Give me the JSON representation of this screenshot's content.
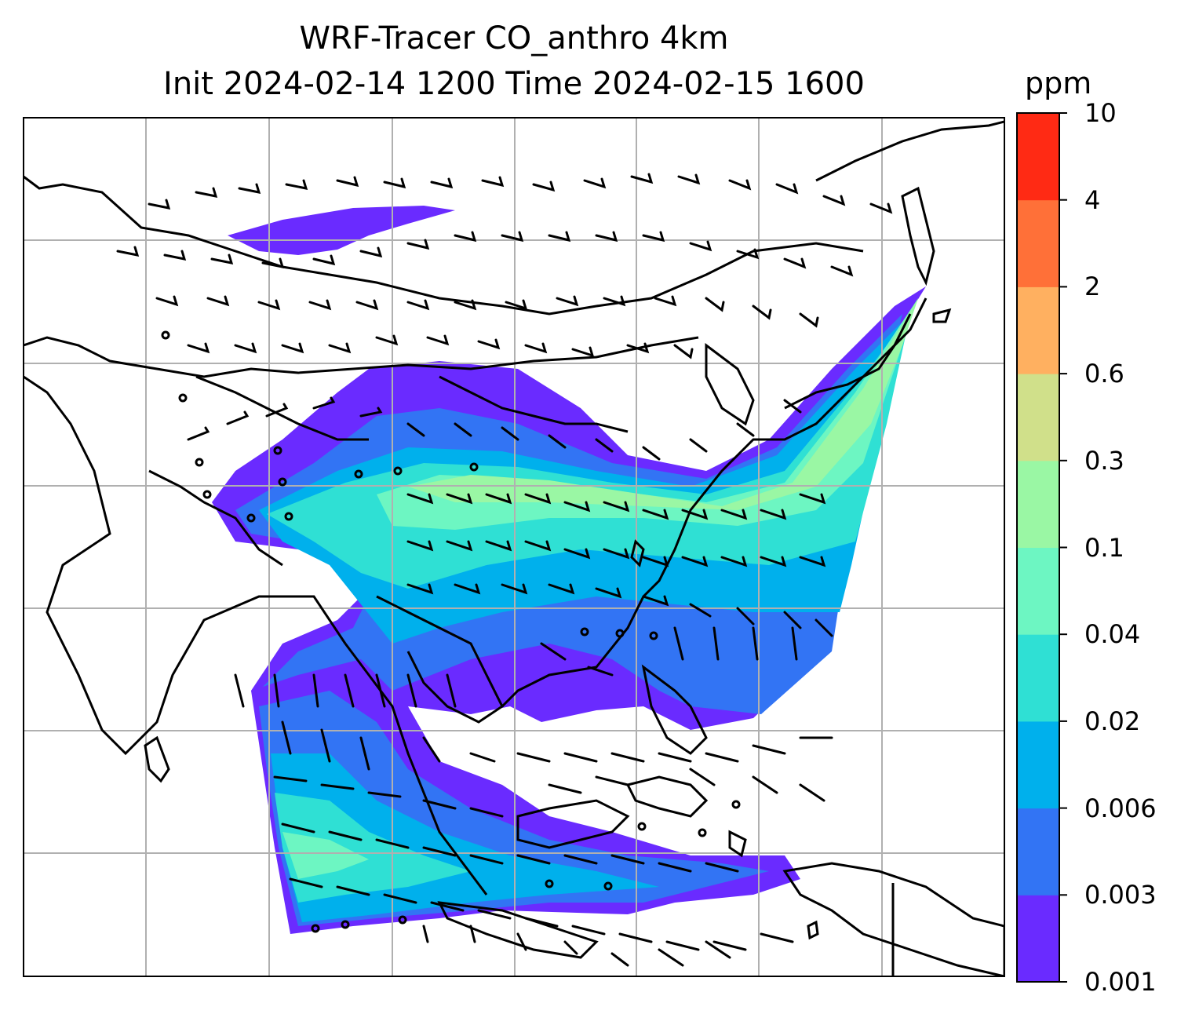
{
  "title": {
    "line1": "WRF-Tracer CO_anthro 4km",
    "line2": "Init 2024-02-14 1200 Time 2024-02-15 1600"
  },
  "colorbar": {
    "unit": "ppm",
    "tick_labels": [
      "0.001",
      "0.003",
      "0.006",
      "0.02",
      "0.04",
      "0.1",
      "0.3",
      "0.6",
      "2",
      "4",
      "10"
    ],
    "colors": [
      "#6a2bff",
      "#3274f4",
      "#00b0ec",
      "#2fe0d4",
      "#6df6c2",
      "#9af7a4",
      "#d0e08a",
      "#ffb060",
      "#ff7038",
      "#ff2a14"
    ]
  },
  "chart_data": {
    "type": "heatmap",
    "title": "WRF-Tracer CO_anthro 4km",
    "subtitle": "Init 2024-02-14 1200 Time 2024-02-15 1600",
    "variable": "CO_anthro",
    "resolution": "4km",
    "init_time": "2024-02-14 1200",
    "valid_time": "2024-02-15 1600",
    "units": "ppm",
    "levels": [
      0.001,
      0.003,
      0.006,
      0.02,
      0.04,
      0.1,
      0.3,
      0.6,
      2,
      4,
      10
    ],
    "overlay": "wind barbs",
    "grid": true,
    "legend_placement": "right"
  }
}
